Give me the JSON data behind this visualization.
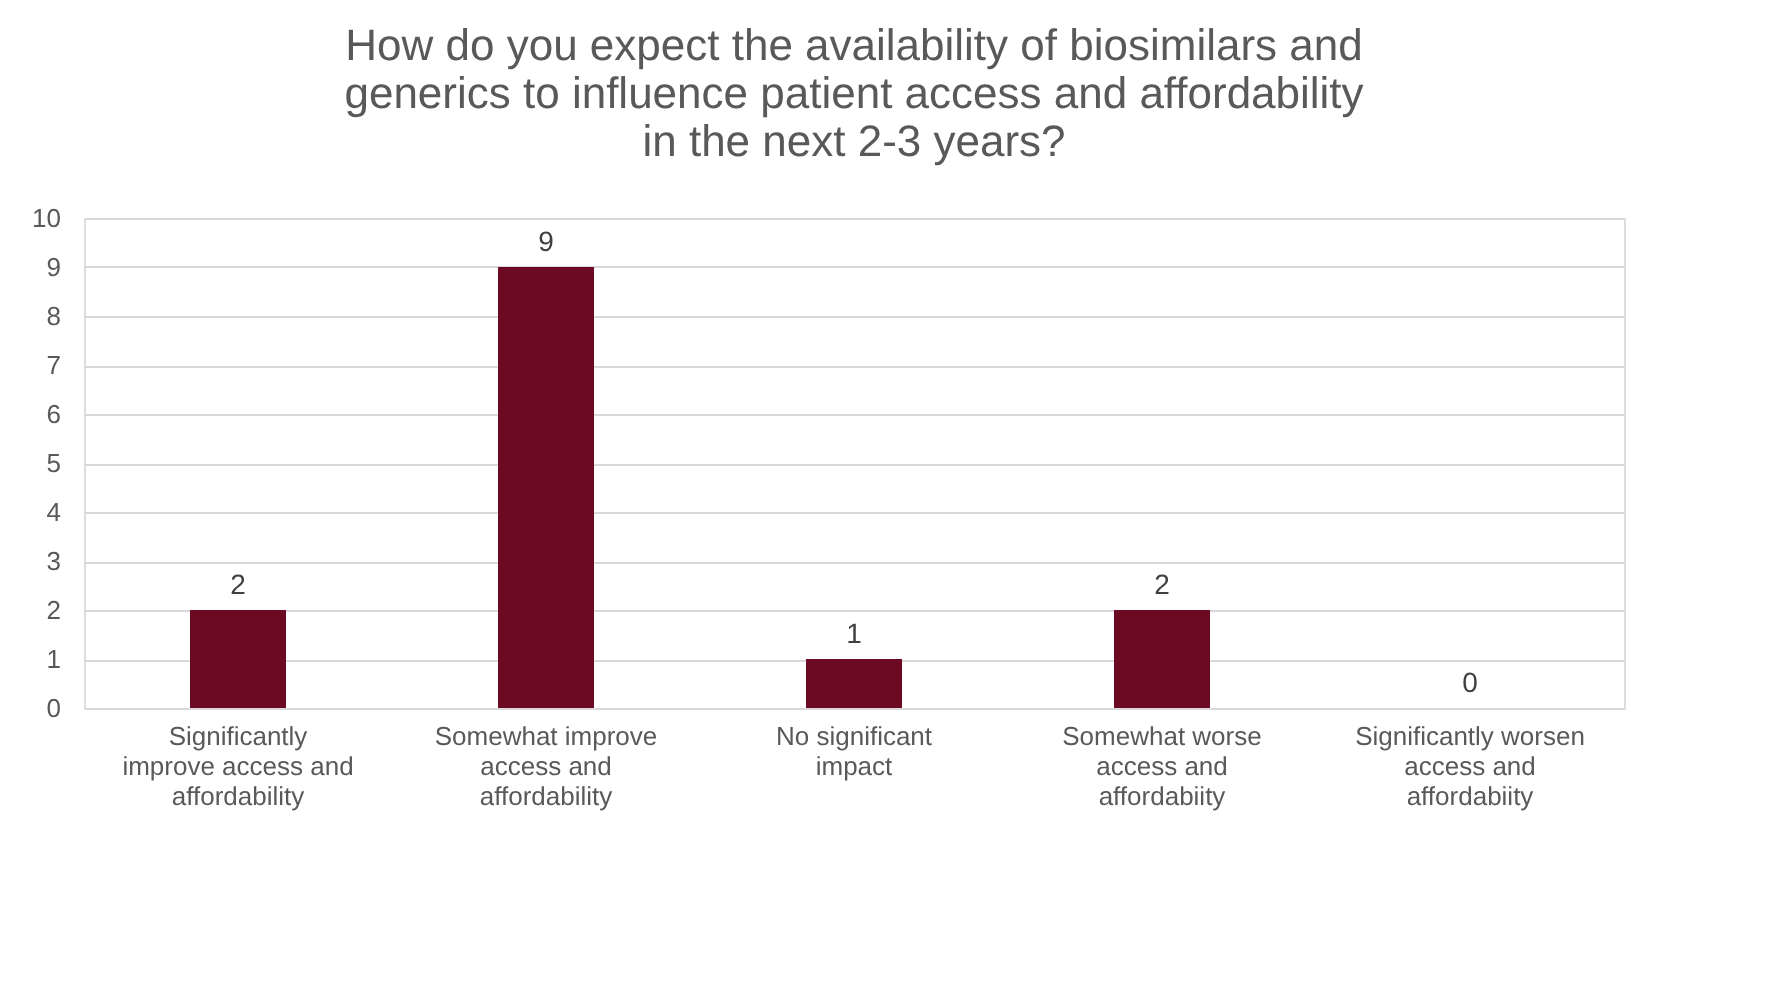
{
  "chart_data": {
    "type": "bar",
    "title": "How do you expect the availability of biosimilars and generics to influence patient access and affordability in the next 2-3 years?",
    "categories": [
      "Significantly improve access and affordability",
      "Somewhat improve access and affordability",
      "No significant impact",
      "Somewhat worse access and affordabiity",
      "Significantly worsen access and affordabiity"
    ],
    "values": [
      2,
      9,
      1,
      2,
      0
    ],
    "color": "#6b0a22",
    "ylim": [
      0,
      10
    ],
    "yticks": [
      0,
      1,
      2,
      3,
      4,
      5,
      6,
      7,
      8,
      9,
      10
    ],
    "grid": "y",
    "data_labels": true
  }
}
